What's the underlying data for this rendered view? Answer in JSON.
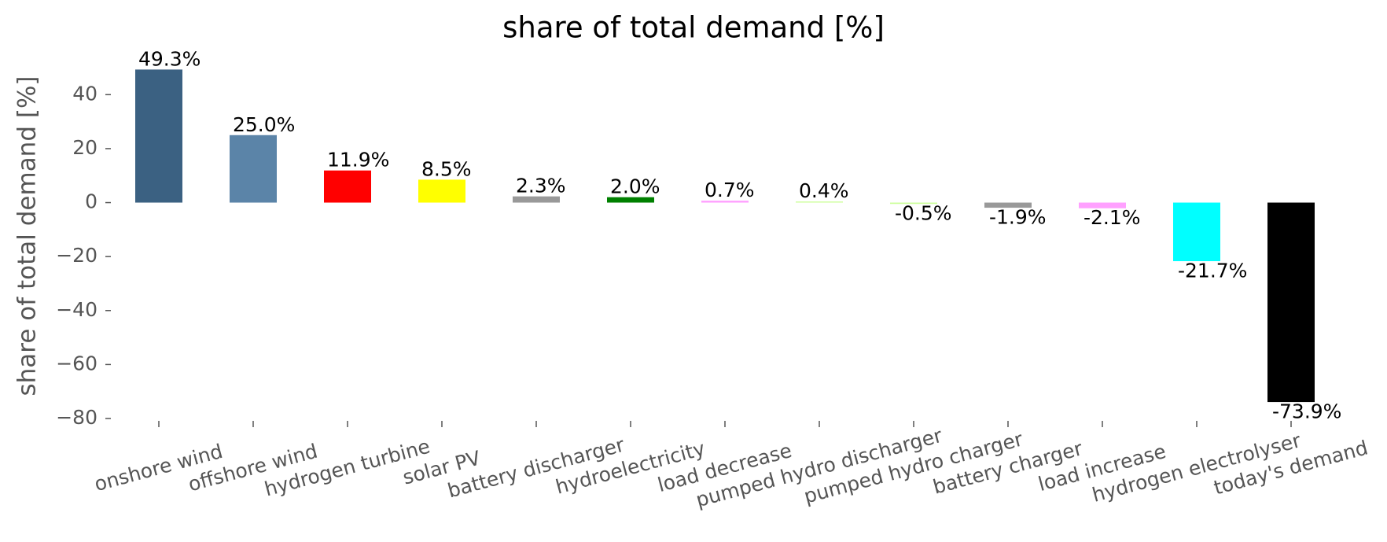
{
  "chart_data": {
    "type": "bar",
    "title": "share of total demand [%]",
    "ylabel": "share of total demand [%]",
    "categories": [
      "onshore wind",
      "offshore wind",
      "hydrogen turbine",
      "solar PV",
      "battery discharger",
      "hydroelectricity",
      "load decrease",
      "pumped hydro discharger",
      "pumped hydro charger",
      "battery charger",
      "load increase",
      "hydrogen electrolyser",
      "today's demand"
    ],
    "values": [
      49.3,
      25.0,
      11.9,
      8.5,
      2.3,
      2.0,
      0.7,
      0.4,
      -0.5,
      -1.9,
      -2.1,
      -21.7,
      -73.9
    ],
    "value_labels": [
      "49.3%",
      "25.0%",
      "11.9%",
      "8.5%",
      "2.3%",
      "2.0%",
      "0.7%",
      "0.4%",
      "-0.5%",
      "-1.9%",
      "-2.1%",
      "-21.7%",
      "-73.9%"
    ],
    "colors": [
      "#3b6182",
      "#5b84a8",
      "#ff0000",
      "#ffff00",
      "#999999",
      "#008000",
      "#ffa0ff",
      "#ccff99",
      "#ccff99",
      "#999999",
      "#ffa0ff",
      "#00ffff",
      "#000000"
    ],
    "ylim": [
      -80,
      50
    ],
    "yticks": [
      {
        "value": -80,
        "label": "−80"
      },
      {
        "value": -60,
        "label": "−60"
      },
      {
        "value": -40,
        "label": "−40"
      },
      {
        "value": -20,
        "label": "−20"
      },
      0,
      20,
      40
    ],
    "grid": false
  }
}
